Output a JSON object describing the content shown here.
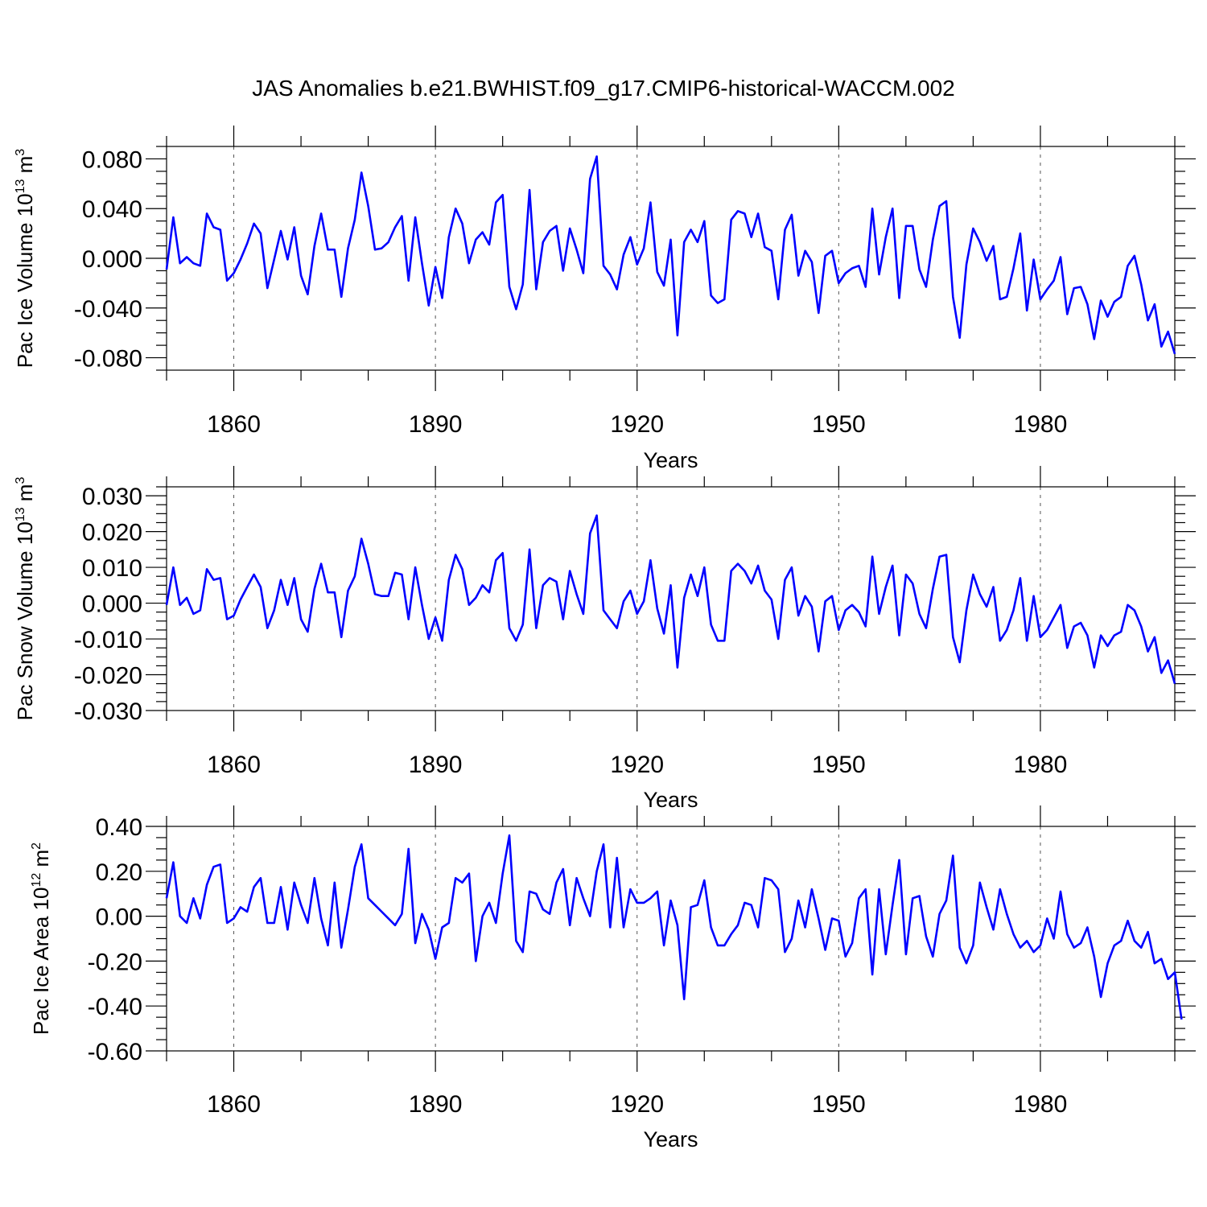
{
  "figure_title": "JAS Anomalies b.e21.BWHIST.f09_g17.CMIP6-historical-WACCM.002",
  "colors": {
    "line": "#0000ff",
    "axis": "#000000",
    "grid": "#555555"
  },
  "chart_data": [
    {
      "type": "line",
      "name": "pac-ice-volume",
      "ylabel": "Pac Ice Volume 10",
      "ylabel_exp": "13",
      "ylabel_unit": " m",
      "ylabel_unit_exp": "3",
      "xlabel": "Years",
      "xlim": [
        1850,
        2000
      ],
      "ylim": [
        -0.09,
        0.09
      ],
      "xticks": [
        1860,
        1890,
        1920,
        1950,
        1980
      ],
      "xtick_labels": [
        "1860",
        "1890",
        "1920",
        "1950",
        "1980"
      ],
      "yticks": [
        0.08,
        0.04,
        0.0,
        -0.04,
        -0.08
      ],
      "ytick_labels": [
        "0.080",
        "0.040",
        "0.000",
        "-0.040",
        "-0.080"
      ],
      "ymajor_step": 0.04,
      "yminor_step": 0.01,
      "x_start": 1850,
      "values": [
        -0.009,
        0.033,
        -0.004,
        0.001,
        -0.004,
        -0.006,
        0.036,
        0.025,
        0.023,
        -0.018,
        -0.012,
        -0.001,
        0.012,
        0.028,
        0.02,
        -0.024,
        -0.001,
        0.022,
        -0.001,
        0.025,
        -0.014,
        -0.029,
        0.01,
        0.036,
        0.007,
        0.007,
        -0.031,
        0.008,
        0.031,
        0.069,
        0.042,
        0.007,
        0.008,
        0.013,
        0.025,
        0.034,
        -0.018,
        0.033,
        -0.004,
        -0.038,
        -0.007,
        -0.032,
        0.017,
        0.04,
        0.028,
        -0.004,
        0.015,
        0.021,
        0.011,
        0.045,
        0.051,
        -0.023,
        -0.041,
        -0.021,
        0.055,
        -0.025,
        0.013,
        0.022,
        0.026,
        -0.01,
        0.024,
        0.007,
        -0.012,
        0.064,
        0.082,
        -0.006,
        -0.013,
        -0.025,
        0.003,
        0.017,
        -0.005,
        0.008,
        0.045,
        -0.011,
        -0.022,
        0.015,
        -0.062,
        0.013,
        0.023,
        0.013,
        0.03,
        -0.03,
        -0.036,
        -0.033,
        0.031,
        0.038,
        0.036,
        0.017,
        0.036,
        0.009,
        0.006,
        -0.033,
        0.023,
        0.035,
        -0.014,
        0.006,
        -0.003,
        -0.044,
        0.002,
        0.006,
        -0.02,
        -0.012,
        -0.008,
        -0.006,
        -0.023,
        0.04,
        -0.013,
        0.017,
        0.04,
        -0.032,
        0.026,
        0.026,
        -0.009,
        -0.023,
        0.015,
        0.042,
        0.046,
        -0.031,
        -0.064,
        -0.005,
        0.024,
        0.013,
        -0.002,
        0.01,
        -0.033,
        -0.031,
        -0.008,
        0.02,
        -0.042,
        -0.001,
        -0.033,
        -0.025,
        -0.018,
        0.001,
        -0.045,
        -0.024,
        -0.023,
        -0.037,
        -0.065,
        -0.034,
        -0.047,
        -0.035,
        -0.031,
        -0.006,
        0.002,
        -0.021,
        -0.05,
        -0.037,
        -0.071,
        -0.059,
        -0.077
      ]
    },
    {
      "type": "line",
      "name": "pac-snow-volume",
      "ylabel": "Pac Snow Volume 10",
      "ylabel_exp": "13",
      "ylabel_unit": " m",
      "ylabel_unit_exp": "3",
      "xlabel": "Years",
      "xlim": [
        1850,
        2000
      ],
      "ylim": [
        -0.03,
        0.0325
      ],
      "xticks": [
        1860,
        1890,
        1920,
        1950,
        1980
      ],
      "xtick_labels": [
        "1860",
        "1890",
        "1920",
        "1950",
        "1980"
      ],
      "yticks": [
        0.03,
        0.02,
        0.01,
        0.0,
        -0.01,
        -0.02,
        -0.03
      ],
      "ytick_labels": [
        "0.030",
        "0.020",
        "0.010",
        "0.000",
        "-0.010",
        "-0.020",
        "-0.030"
      ],
      "ymajor_step": 0.01,
      "yminor_step": 0.0025,
      "x_start": 1850,
      "values": [
        -0.0005,
        0.01,
        -0.0005,
        0.0015,
        -0.003,
        -0.002,
        0.0095,
        0.0065,
        0.007,
        -0.0045,
        -0.0035,
        0.001,
        0.0045,
        0.008,
        0.0045,
        -0.007,
        -0.002,
        0.0065,
        -0.0005,
        0.007,
        -0.0045,
        -0.008,
        0.004,
        0.011,
        0.003,
        0.003,
        -0.0095,
        0.0035,
        0.0075,
        0.018,
        0.011,
        0.0025,
        0.002,
        0.002,
        0.0085,
        0.008,
        -0.0045,
        0.01,
        -0.0005,
        -0.01,
        -0.004,
        -0.0105,
        0.0065,
        0.0135,
        0.0095,
        -0.0005,
        0.0015,
        0.005,
        0.003,
        0.012,
        0.014,
        -0.007,
        -0.0105,
        -0.006,
        0.015,
        -0.007,
        0.005,
        0.007,
        0.006,
        -0.0045,
        0.009,
        0.0025,
        -0.003,
        0.0195,
        0.0245,
        -0.002,
        -0.0045,
        -0.007,
        0.0005,
        0.0035,
        -0.003,
        0.0005,
        0.012,
        -0.0015,
        -0.0085,
        0.005,
        -0.018,
        0.0015,
        0.008,
        0.002,
        0.01,
        -0.006,
        -0.0105,
        -0.0105,
        0.009,
        0.011,
        0.009,
        0.0055,
        0.0105,
        0.0035,
        0.001,
        -0.01,
        0.0065,
        0.01,
        -0.0035,
        0.002,
        -0.001,
        -0.0135,
        0.0005,
        0.002,
        -0.0075,
        -0.002,
        -0.0005,
        -0.0025,
        -0.0065,
        0.013,
        -0.003,
        0.0045,
        0.0105,
        -0.009,
        0.008,
        0.0055,
        -0.003,
        -0.007,
        0.004,
        0.013,
        0.0135,
        -0.0095,
        -0.0165,
        -0.002,
        0.008,
        0.0025,
        -0.001,
        0.0045,
        -0.0105,
        -0.0075,
        -0.002,
        0.007,
        -0.0105,
        0.002,
        -0.0095,
        -0.0075,
        -0.004,
        -0.0005,
        -0.0125,
        -0.0065,
        -0.0055,
        -0.009,
        -0.018,
        -0.009,
        -0.012,
        -0.009,
        -0.008,
        -0.0005,
        -0.002,
        -0.0065,
        -0.0135,
        -0.0095,
        -0.0195,
        -0.016,
        -0.0225
      ]
    },
    {
      "type": "line",
      "name": "pac-ice-area",
      "ylabel": "Pac Ice Area 10",
      "ylabel_exp": "12",
      "ylabel_unit": " m",
      "ylabel_unit_exp": "2",
      "xlabel": "Years",
      "xlim": [
        1850,
        2000
      ],
      "ylim": [
        -0.6,
        0.4
      ],
      "xticks": [
        1860,
        1890,
        1920,
        1950,
        1980
      ],
      "xtick_labels": [
        "1860",
        "1890",
        "1920",
        "1950",
        "1980"
      ],
      "yticks": [
        0.4,
        0.2,
        0.0,
        -0.2,
        -0.4,
        -0.6
      ],
      "ytick_labels": [
        "0.40",
        "0.20",
        "0.00",
        "-0.20",
        "-0.40",
        "-0.60"
      ],
      "ymajor_step": 0.2,
      "yminor_step": 0.05,
      "x_start": 1850,
      "values": [
        0.08,
        0.24,
        0.0,
        -0.03,
        0.08,
        -0.01,
        0.14,
        0.22,
        0.23,
        -0.03,
        -0.01,
        0.04,
        0.02,
        0.13,
        0.17,
        -0.03,
        -0.03,
        0.13,
        -0.06,
        0.15,
        0.05,
        -0.03,
        0.17,
        -0.01,
        -0.13,
        0.15,
        -0.14,
        0.03,
        0.22,
        0.32,
        0.08,
        0.05,
        0.02,
        -0.01,
        -0.04,
        0.01,
        0.3,
        -0.12,
        0.01,
        -0.06,
        -0.19,
        -0.05,
        -0.03,
        0.17,
        0.15,
        0.19,
        -0.2,
        0.0,
        0.06,
        -0.03,
        0.19,
        0.36,
        -0.11,
        -0.16,
        0.11,
        0.1,
        0.03,
        0.01,
        0.15,
        0.21,
        -0.04,
        0.17,
        0.08,
        0.0,
        0.2,
        0.32,
        -0.05,
        0.26,
        -0.05,
        0.12,
        0.06,
        0.06,
        0.08,
        0.11,
        -0.13,
        0.07,
        -0.04,
        -0.37,
        0.04,
        0.05,
        0.16,
        -0.05,
        -0.13,
        -0.13,
        -0.08,
        -0.04,
        0.06,
        0.05,
        -0.05,
        0.17,
        0.16,
        0.12,
        -0.16,
        -0.1,
        0.07,
        -0.05,
        0.12,
        -0.01,
        -0.15,
        -0.01,
        -0.02,
        -0.18,
        -0.12,
        0.08,
        0.12,
        -0.26,
        0.12,
        -0.17,
        0.05,
        0.25,
        -0.17,
        0.08,
        0.09,
        -0.09,
        -0.18,
        0.01,
        0.07,
        0.27,
        -0.14,
        -0.21,
        -0.13,
        0.15,
        0.04,
        -0.06,
        0.12,
        0.01,
        -0.08,
        -0.14,
        -0.11,
        -0.16,
        -0.13,
        -0.01,
        -0.1,
        0.11,
        -0.08,
        -0.14,
        -0.12,
        -0.05,
        -0.18,
        -0.36,
        -0.21,
        -0.13,
        -0.11,
        -0.02,
        -0.11,
        -0.14,
        -0.07,
        -0.21,
        -0.19,
        -0.28,
        -0.25,
        -0.46
      ]
    }
  ]
}
